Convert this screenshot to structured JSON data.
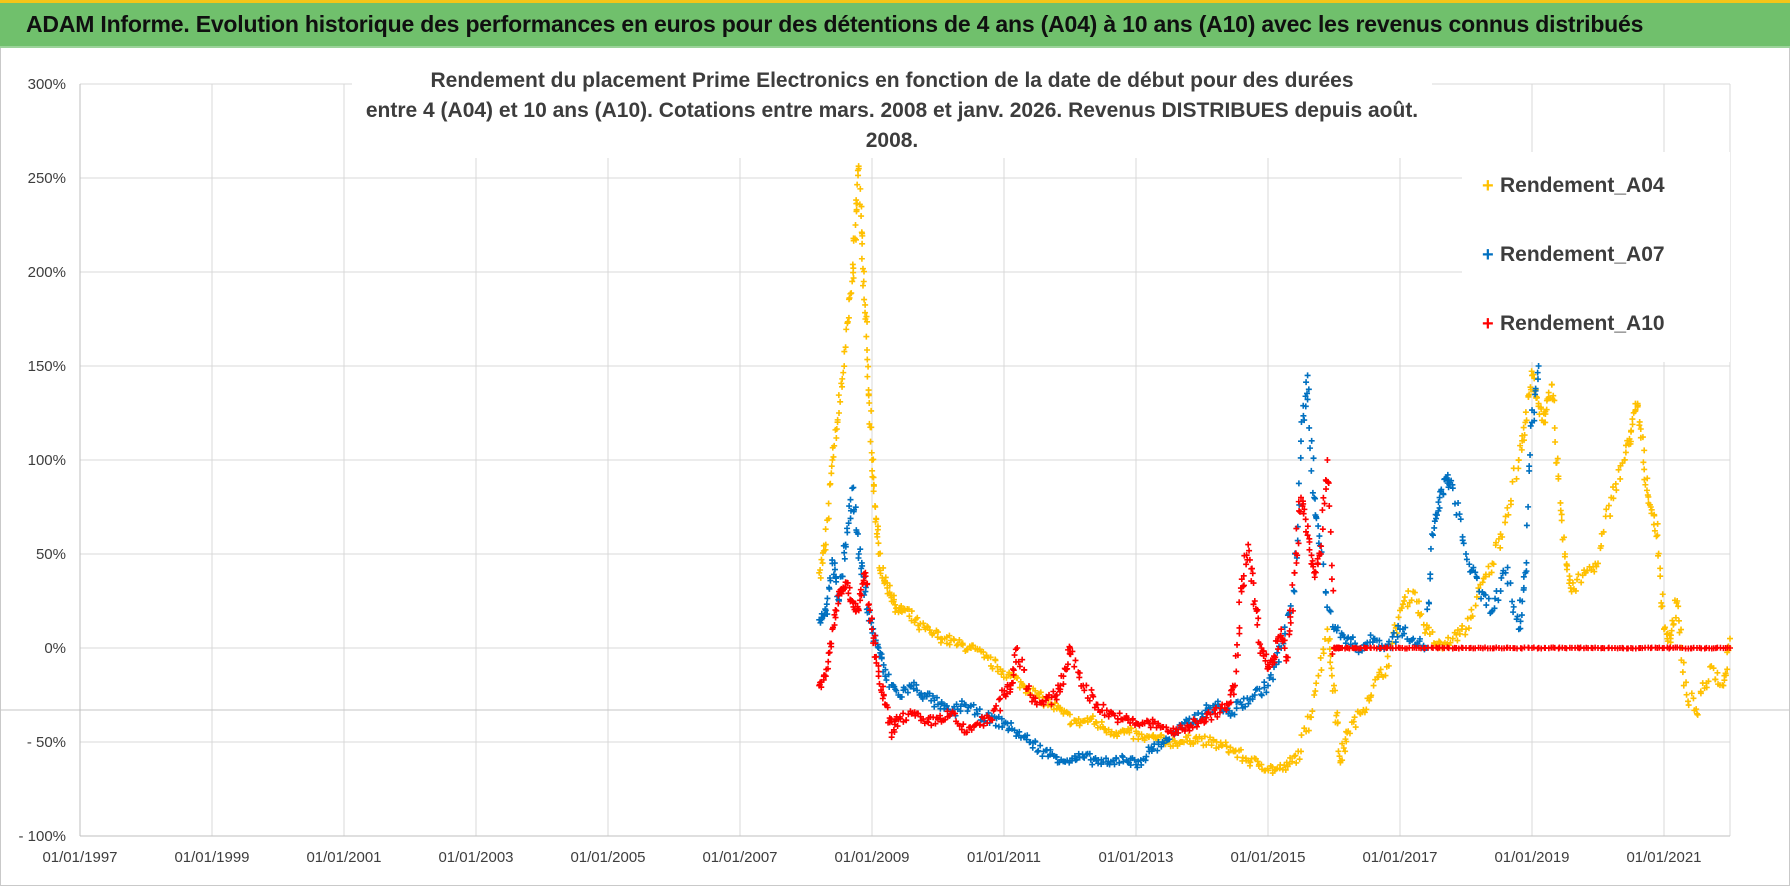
{
  "banner": {
    "title": "ADAM Informe. Evolution historique des performances en euros pour des détentions de 4 ans (A04) à 10 ans (A10) avec les revenus connus distribués"
  },
  "colors": {
    "banner_bg": "#70c06c",
    "banner_accent": "#f5c518",
    "A04": "#ffc000",
    "A07": "#0070c0",
    "A10": "#ff0000",
    "grid": "#d9d9d9"
  },
  "chart_data": {
    "type": "scatter",
    "title_line1": "Rendement du placement Prime Electronics  en fonction de la date de début pour des durées",
    "title_line2": "entre 4 (A04) et 10 ans (A10). Cotations entre mars. 2008 et janv. 2026. Revenus DISTRIBUES depuis août. 2008.",
    "xlabel": "",
    "ylabel": "",
    "xlim": [
      "1997-01-01",
      "2022-01-01"
    ],
    "ylim": [
      -100,
      300
    ],
    "y_ticks": [
      300,
      250,
      200,
      150,
      100,
      50,
      0,
      -50,
      -100
    ],
    "y_tick_labels": [
      "300%",
      "250%",
      "200%",
      "150%",
      "100%",
      "50%",
      "0%",
      "- 50%",
      "- 100%"
    ],
    "x_tick_labels": [
      "01/01/1997",
      "01/01/1999",
      "01/01/2001",
      "01/01/2003",
      "01/01/2005",
      "01/01/2007",
      "01/01/2009",
      "01/01/2011",
      "01/01/2013",
      "01/01/2015",
      "01/01/2017",
      "01/01/2019",
      "01/01/2021"
    ],
    "grid": true,
    "legend_position": "top-right",
    "marker": "+",
    "series": [
      {
        "name": "Rendement_A04",
        "color": "#ffc000",
        "x": [
          2008.2,
          2008.3,
          2008.4,
          2008.5,
          2008.6,
          2008.7,
          2008.75,
          2008.8,
          2008.85,
          2008.9,
          2008.95,
          2009.0,
          2009.05,
          2009.1,
          2009.2,
          2009.3,
          2009.4,
          2009.5,
          2009.7,
          2009.9,
          2010.1,
          2010.3,
          2010.5,
          2010.7,
          2010.9,
          2011.1,
          2011.3,
          2011.5,
          2011.7,
          2011.9,
          2012.1,
          2012.3,
          2012.5,
          2012.7,
          2012.9,
          2013.1,
          2013.3,
          2013.5,
          2013.7,
          2013.9,
          2014.1,
          2014.3,
          2014.5,
          2014.7,
          2014.9,
          2015.1,
          2015.3,
          2015.5,
          2015.7,
          2015.9,
          2016.0,
          2016.1,
          2016.2,
          2016.4,
          2016.6,
          2016.8,
          2017.0,
          2017.2,
          2017.4,
          2017.6,
          2017.8,
          2018.0,
          2018.2,
          2018.4,
          2018.6,
          2018.8,
          2018.9,
          2019.0,
          2019.1,
          2019.2,
          2019.3,
          2019.4,
          2019.5,
          2019.6,
          2019.8,
          2020.0,
          2020.2,
          2020.4,
          2020.5,
          2020.6,
          2020.7,
          2020.8,
          2020.9,
          2021.0,
          2021.1,
          2021.2,
          2021.3,
          2021.5,
          2021.7,
          2021.9,
          2022.0
        ],
        "y": [
          40,
          55,
          100,
          125,
          160,
          195,
          225,
          255,
          215,
          175,
          135,
          100,
          75,
          50,
          35,
          28,
          20,
          20,
          12,
          8,
          5,
          2,
          0,
          -5,
          -10,
          -15,
          -20,
          -25,
          -30,
          -35,
          -40,
          -38,
          -42,
          -45,
          -45,
          -48,
          -48,
          -50,
          -50,
          -48,
          -50,
          -52,
          -55,
          -60,
          -62,
          -65,
          -63,
          -55,
          -25,
          10,
          -20,
          -60,
          -45,
          -35,
          -20,
          -10,
          20,
          30,
          10,
          0,
          5,
          10,
          30,
          45,
          70,
          100,
          120,
          145,
          130,
          120,
          140,
          90,
          50,
          30,
          40,
          45,
          80,
          100,
          115,
          130,
          95,
          75,
          60,
          10,
          5,
          25,
          -20,
          -35,
          -10,
          -20,
          5
        ]
      },
      {
        "name": "Rendement_A07",
        "color": "#0070c0",
        "x": [
          2008.2,
          2008.3,
          2008.4,
          2008.5,
          2008.6,
          2008.7,
          2008.8,
          2008.9,
          2009.0,
          2009.1,
          2009.2,
          2009.4,
          2009.6,
          2009.8,
          2010.0,
          2010.2,
          2010.4,
          2010.6,
          2010.8,
          2011.0,
          2011.2,
          2011.4,
          2011.6,
          2011.8,
          2012.0,
          2012.2,
          2012.4,
          2012.6,
          2012.8,
          2013.0,
          2013.2,
          2013.4,
          2013.6,
          2013.8,
          2014.0,
          2014.2,
          2014.4,
          2014.6,
          2014.8,
          2015.0,
          2015.2,
          2015.4,
          2015.5,
          2015.6,
          2015.7,
          2015.8,
          2016.0,
          2016.2,
          2016.4,
          2016.6,
          2016.8,
          2017.0,
          2017.2,
          2017.4,
          2017.5,
          2017.6,
          2017.7,
          2017.8,
          2018.0,
          2018.2,
          2018.4,
          2018.6,
          2018.8,
          2018.9,
          2019.0,
          2019.1
        ],
        "y": [
          15,
          20,
          45,
          25,
          55,
          85,
          50,
          30,
          10,
          0,
          -15,
          -25,
          -20,
          -25,
          -30,
          -35,
          -30,
          -35,
          -38,
          -40,
          -45,
          -50,
          -55,
          -58,
          -60,
          -58,
          -60,
          -62,
          -58,
          -62,
          -55,
          -50,
          -45,
          -40,
          -35,
          -30,
          -35,
          -30,
          -25,
          -20,
          0,
          30,
          110,
          145,
          80,
          50,
          10,
          5,
          0,
          5,
          0,
          10,
          5,
          0,
          60,
          80,
          90,
          85,
          50,
          30,
          20,
          40,
          10,
          40,
          120,
          150
        ]
      },
      {
        "name": "Rendement_A10",
        "color": "#ff0000",
        "x": [
          2008.2,
          2008.3,
          2008.4,
          2008.5,
          2008.6,
          2008.7,
          2008.8,
          2008.9,
          2009.0,
          2009.1,
          2009.2,
          2009.3,
          2009.4,
          2009.6,
          2009.8,
          2010.0,
          2010.2,
          2010.4,
          2010.6,
          2010.8,
          2011.0,
          2011.1,
          2011.2,
          2011.4,
          2011.6,
          2011.8,
          2011.9,
          2012.0,
          2012.2,
          2012.4,
          2012.6,
          2012.8,
          2013.0,
          2013.2,
          2013.4,
          2013.6,
          2013.8,
          2014.0,
          2014.2,
          2014.4,
          2014.5,
          2014.6,
          2014.7,
          2014.8,
          2014.9,
          2015.0,
          2015.1,
          2015.2,
          2015.3,
          2015.4,
          2015.5,
          2015.6,
          2015.7,
          2015.8,
          2015.9,
          2016.0,
          2016.1,
          2016.5,
          2017.0,
          2017.5,
          2018.0,
          2018.5,
          2019.0,
          2019.5,
          2020.0,
          2020.5,
          2021.0,
          2021.5,
          2022.0
        ],
        "y": [
          -20,
          -15,
          10,
          30,
          35,
          25,
          20,
          40,
          10,
          -15,
          -30,
          -45,
          -38,
          -35,
          -40,
          -38,
          -35,
          -45,
          -40,
          -38,
          -25,
          -20,
          0,
          -25,
          -30,
          -25,
          -15,
          0,
          -20,
          -30,
          -35,
          -38,
          -40,
          -40,
          -42,
          -45,
          -42,
          -38,
          -35,
          -30,
          -20,
          30,
          55,
          25,
          0,
          -10,
          -5,
          10,
          -5,
          40,
          80,
          60,
          40,
          50,
          100,
          0,
          0,
          0,
          0,
          0,
          0,
          0,
          0,
          0,
          0,
          0,
          0,
          0,
          0
        ]
      }
    ]
  }
}
